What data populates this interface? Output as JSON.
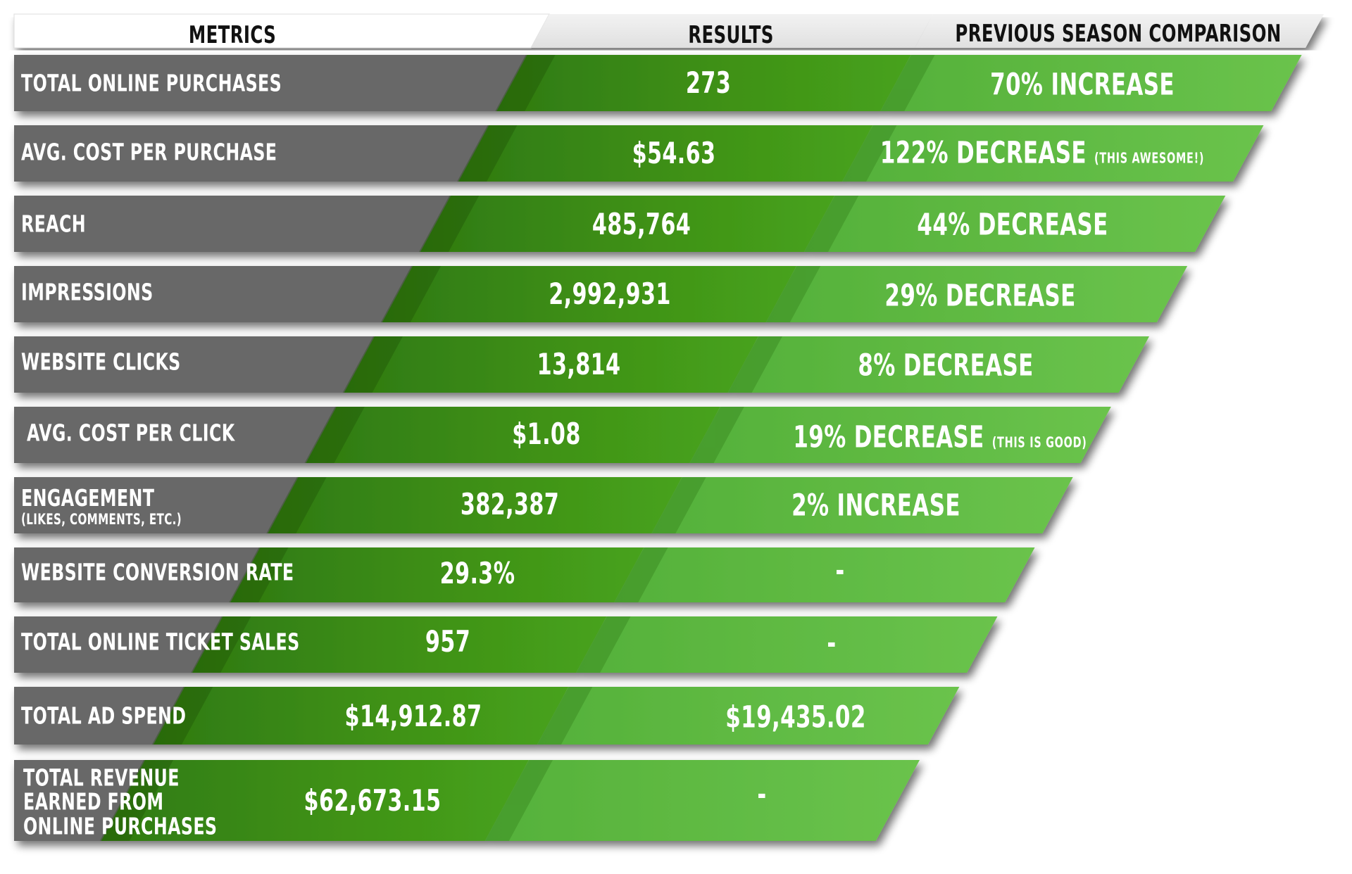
{
  "headers": {
    "metrics": "METRICS",
    "results": "RESULTS",
    "comparison": "PREVIOUS SEASON COMPARISON"
  },
  "rows": [
    {
      "metric": "TOTAL ONLINE PURCHASES",
      "result": "273",
      "comparison": "70% INCREASE"
    },
    {
      "metric": "AVG. COST PER PURCHASE",
      "result": "$54.63",
      "comparison": "122% DECREASE",
      "comparison_note": "(THIS AWESOME!)"
    },
    {
      "metric": "REACH",
      "result": "485,764",
      "comparison": "44% DECREASE"
    },
    {
      "metric": "IMPRESSIONS",
      "result": "2,992,931",
      "comparison": "29% DECREASE"
    },
    {
      "metric": "WEBSITE CLICKS",
      "result": "13,814",
      "comparison": "8% DECREASE"
    },
    {
      "metric": "AVG. COST PER CLICK",
      "result": "$1.08",
      "comparison": "19% DECREASE",
      "comparison_note": "(THIS IS GOOD)"
    },
    {
      "metric": "ENGAGEMENT",
      "metric_note": "(LIKES, COMMENTS, ETC.)",
      "result": "382,387",
      "comparison": "2% INCREASE"
    },
    {
      "metric": "WEBSITE CONVERSION RATE",
      "result": "29.3%",
      "comparison": "-"
    },
    {
      "metric": "TOTAL ONLINE TICKET SALES",
      "result": "957",
      "comparison": "-"
    },
    {
      "metric": "TOTAL AD SPEND",
      "result": "$14,912.87",
      "comparison": "$19,435.02"
    },
    {
      "metric_lines": [
        "TOTAL REVENUE",
        "EARNED FROM",
        "ONLINE PURCHASES"
      ],
      "result": "$62,673.15",
      "comparison": "-"
    }
  ],
  "colors": {
    "metrics_band": "#686868",
    "results_band": "#3f8f17",
    "comparison_band": "#63bd45",
    "header_band": "#ececec",
    "header_text": "#111111"
  }
}
